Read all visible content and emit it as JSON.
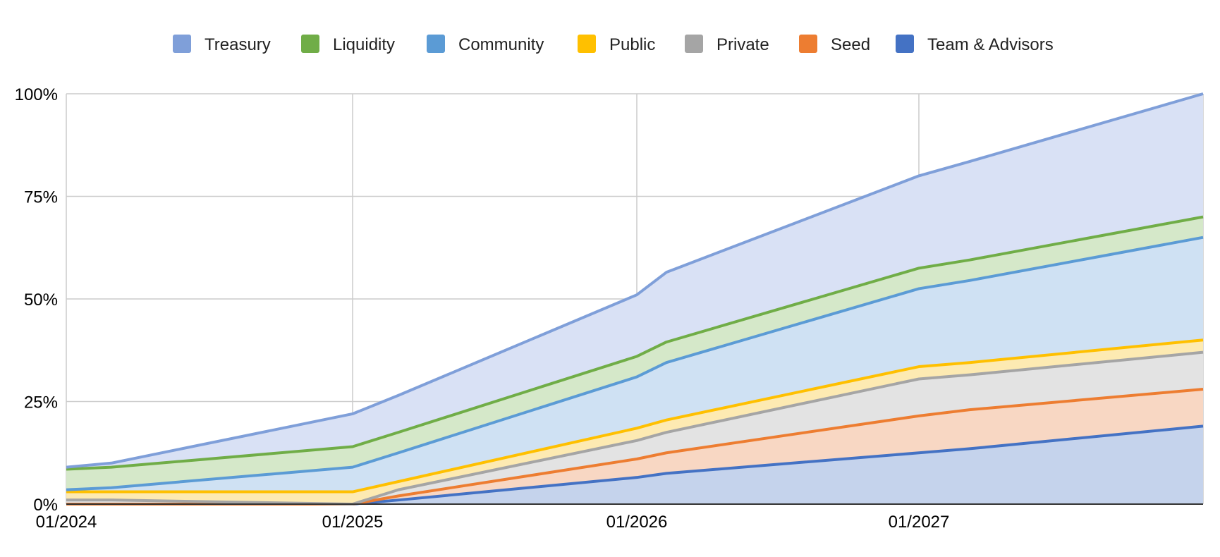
{
  "chart_data": {
    "type": "area",
    "stacked": true,
    "x": [
      "01/2024",
      "03/2024",
      "01/2025",
      "03/2025",
      "01/2026",
      "03/2026",
      "01/2027",
      "03/2027",
      "12/2027"
    ],
    "x_ticks": [
      "01/2024",
      "01/2025",
      "01/2026",
      "01/2027"
    ],
    "y_ticks": [
      "0%",
      "25%",
      "50%",
      "75%",
      "100%"
    ],
    "ylim": [
      0,
      100
    ],
    "xlabel": "",
    "ylabel": "",
    "title": "",
    "grid": true,
    "legend_position": "top",
    "series": [
      {
        "name": "Team & Advisors",
        "color": "#4472c4",
        "fill": "#c5d3ec",
        "values": [
          0,
          0,
          0,
          1,
          6.5,
          7.5,
          12.5,
          13.5,
          19
        ]
      },
      {
        "name": "Seed",
        "color": "#ed7d31",
        "fill": "#f8d7c3",
        "values": [
          0,
          0,
          0,
          1,
          4.5,
          5,
          9,
          9.5,
          9
        ]
      },
      {
        "name": "Private",
        "color": "#a5a5a5",
        "fill": "#e3e3e3",
        "values": [
          1,
          1,
          0,
          1.5,
          4.5,
          5,
          9,
          8.5,
          9
        ]
      },
      {
        "name": "Public",
        "color": "#ffc000",
        "fill": "#fdeab2",
        "values": [
          2,
          2,
          3,
          2,
          3,
          3,
          3,
          3,
          3
        ]
      },
      {
        "name": "Community",
        "color": "#5b9bd5",
        "fill": "#cfe1f3",
        "values": [
          0.5,
          1,
          6,
          7,
          12.5,
          14,
          19,
          20,
          25
        ]
      },
      {
        "name": "Liquidity",
        "color": "#70ad47",
        "fill": "#d5e8c9",
        "values": [
          5,
          5,
          5,
          5,
          5,
          5,
          5,
          5,
          5
        ]
      },
      {
        "name": "Treasury",
        "color": "#7f9fd9",
        "fill": "#d9e1f5",
        "values": [
          0.5,
          1,
          8,
          9,
          15,
          17,
          22.5,
          24,
          30
        ]
      }
    ]
  }
}
